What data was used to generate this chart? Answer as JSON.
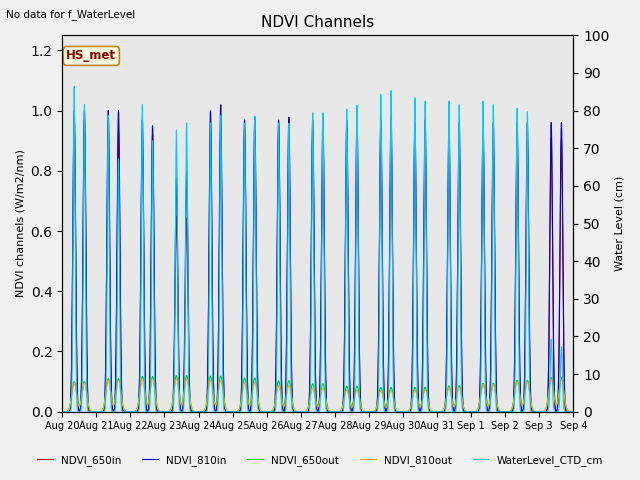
{
  "title": "NDVI Channels",
  "ylabel_left": "NDVI channels (W/m2/nm)",
  "ylabel_right": "Water Level (cm)",
  "no_data_text": "No data for f_WaterLevel",
  "annotation_text": "HS_met",
  "ylim_left": [
    0.0,
    1.25
  ],
  "ylim_right": [
    0,
    100
  ],
  "x_tick_labels": [
    "Aug 20",
    "Aug 21",
    "Aug 22",
    "Aug 23",
    "Aug 24",
    "Aug 25",
    "Aug 26",
    "Aug 27",
    "Aug 28",
    "Aug 29",
    "Aug 30",
    "Aug 31",
    "Sep 1",
    "Sep 2",
    "Sep 3",
    "Sep 4"
  ],
  "legend_items": [
    {
      "label": "NDVI_650in",
      "color": "#cc0000"
    },
    {
      "label": "NDVI_810in",
      "color": "#0000cc"
    },
    {
      "label": "NDVI_650out",
      "color": "#00cc00"
    },
    {
      "label": "NDVI_810out",
      "color": "#ffaa00"
    },
    {
      "label": "WaterLevel_CTD_cm",
      "color": "#00ccff"
    }
  ],
  "background_color": "#e8e8e8",
  "colors": {
    "ndvi_650in": "#cc0000",
    "ndvi_810in": "#0000cc",
    "ndvi_650out": "#00cc00",
    "ndvi_810out": "#ffaa00",
    "water_level": "#00ccff"
  },
  "wl_peaks": [
    90,
    82,
    85,
    78,
    80,
    80,
    80,
    83,
    84,
    88,
    87,
    86,
    86,
    84,
    20,
    0
  ],
  "ndvi_810in_peaks1": [
    1.0,
    1.0,
    0.97,
    0.78,
    1.0,
    0.97,
    0.97,
    0.97,
    0.97,
    0.97,
    0.96,
    0.96,
    0.96,
    0.96,
    0.96
  ],
  "ndvi_810in_peaks2": [
    1.0,
    1.0,
    0.95,
    0.8,
    1.02,
    0.98,
    0.98,
    0.98,
    0.98,
    0.98,
    0.97,
    0.96,
    0.96,
    0.96,
    0.96
  ],
  "ndvi_650in_peaks1": [
    0.98,
    0.94,
    0.93,
    0.65,
    0.95,
    0.94,
    0.95,
    0.94,
    0.94,
    0.94,
    0.91,
    0.91,
    0.91,
    0.91,
    0.91
  ],
  "wl_peaks2": [
    85,
    70,
    75,
    80,
    82,
    82,
    80,
    83,
    85,
    89,
    86,
    85,
    85,
    83,
    18,
    0
  ]
}
